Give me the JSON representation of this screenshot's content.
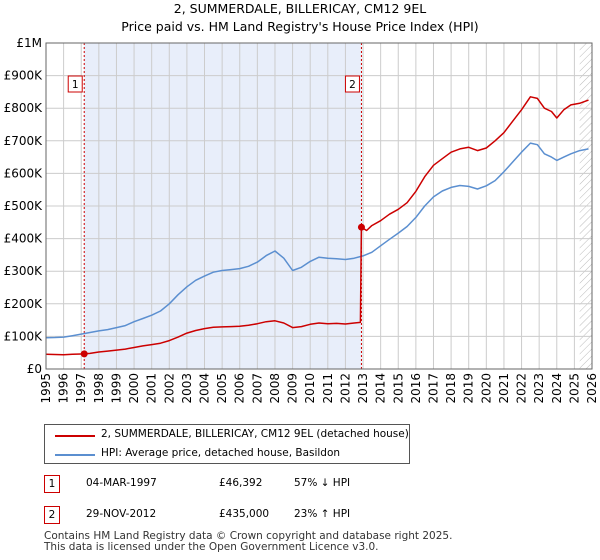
{
  "chart_data": {
    "type": "line",
    "title": "2, SUMMERDALE, BILLERICAY, CM12 9EL",
    "subtitle": "Price paid vs. HM Land Registry's House Price Index (HPI)",
    "xlim": [
      1995.0,
      2026.0
    ],
    "ylim": [
      0,
      1000000
    ],
    "x_ticks": [
      "1995",
      "1996",
      "1997",
      "1998",
      "1999",
      "2000",
      "2001",
      "2002",
      "2003",
      "2004",
      "2005",
      "2006",
      "2007",
      "2008",
      "2009",
      "2010",
      "2011",
      "2012",
      "2013",
      "2014",
      "2015",
      "2016",
      "2017",
      "2018",
      "2019",
      "2020",
      "2021",
      "2022",
      "2023",
      "2024",
      "2025",
      "2026"
    ],
    "y_ticks": [
      {
        "value": 0,
        "label": "£0"
      },
      {
        "value": 100000,
        "label": "£100K"
      },
      {
        "value": 200000,
        "label": "£200K"
      },
      {
        "value": 300000,
        "label": "£300K"
      },
      {
        "value": 400000,
        "label": "£400K"
      },
      {
        "value": 500000,
        "label": "£500K"
      },
      {
        "value": 600000,
        "label": "£600K"
      },
      {
        "value": 700000,
        "label": "£700K"
      },
      {
        "value": 800000,
        "label": "£800K"
      },
      {
        "value": 900000,
        "label": "£900K"
      },
      {
        "value": 1000000,
        "label": "£1M"
      }
    ],
    "shaded_span": [
      1997.17,
      2012.91
    ],
    "future_hatch_from": 2025.3,
    "annotations": [
      {
        "label": "1",
        "x": 1997.17
      },
      {
        "label": "2",
        "x": 2012.91
      }
    ],
    "sales": [
      {
        "label": "1",
        "x": 1997.17,
        "y": 46392
      },
      {
        "label": "2",
        "x": 2012.91,
        "y": 435000
      }
    ],
    "series": [
      {
        "name": "2, SUMMERDALE, BILLERICAY, CM12 9EL (detached house)",
        "color": "#cc0000",
        "points": [
          [
            1995.0,
            45000
          ],
          [
            1995.5,
            44500
          ],
          [
            1996.0,
            44000
          ],
          [
            1996.5,
            45000
          ],
          [
            1997.0,
            46000
          ],
          [
            1997.17,
            46392
          ],
          [
            1997.5,
            48000
          ],
          [
            1998.0,
            52000
          ],
          [
            1998.5,
            55000
          ],
          [
            1999.0,
            58000
          ],
          [
            1999.5,
            61000
          ],
          [
            2000.0,
            66000
          ],
          [
            2000.5,
            71000
          ],
          [
            2001.0,
            75000
          ],
          [
            2001.5,
            79000
          ],
          [
            2002.0,
            87000
          ],
          [
            2002.5,
            98000
          ],
          [
            2003.0,
            110000
          ],
          [
            2003.5,
            118000
          ],
          [
            2004.0,
            124000
          ],
          [
            2004.5,
            128000
          ],
          [
            2005.0,
            129000
          ],
          [
            2005.5,
            130000
          ],
          [
            2006.0,
            131000
          ],
          [
            2006.5,
            134000
          ],
          [
            2007.0,
            139000
          ],
          [
            2007.5,
            145000
          ],
          [
            2008.0,
            148000
          ],
          [
            2008.5,
            141000
          ],
          [
            2009.0,
            127000
          ],
          [
            2009.5,
            130000
          ],
          [
            2010.0,
            137000
          ],
          [
            2010.5,
            141000
          ],
          [
            2011.0,
            139000
          ],
          [
            2011.5,
            140000
          ],
          [
            2012.0,
            138000
          ],
          [
            2012.5,
            141000
          ],
          [
            2012.85,
            143000
          ],
          [
            2012.91,
            435000
          ],
          [
            2013.2,
            425000
          ],
          [
            2013.5,
            440000
          ],
          [
            2014.0,
            455000
          ],
          [
            2014.5,
            475000
          ],
          [
            2015.0,
            490000
          ],
          [
            2015.5,
            510000
          ],
          [
            2016.0,
            545000
          ],
          [
            2016.5,
            590000
          ],
          [
            2017.0,
            625000
          ],
          [
            2017.5,
            645000
          ],
          [
            2018.0,
            665000
          ],
          [
            2018.5,
            675000
          ],
          [
            2019.0,
            680000
          ],
          [
            2019.5,
            670000
          ],
          [
            2020.0,
            678000
          ],
          [
            2020.5,
            700000
          ],
          [
            2021.0,
            725000
          ],
          [
            2021.5,
            760000
          ],
          [
            2022.0,
            795000
          ],
          [
            2022.5,
            835000
          ],
          [
            2022.9,
            830000
          ],
          [
            2023.3,
            800000
          ],
          [
            2023.7,
            790000
          ],
          [
            2024.0,
            770000
          ],
          [
            2024.4,
            795000
          ],
          [
            2024.8,
            810000
          ],
          [
            2025.3,
            815000
          ],
          [
            2025.8,
            825000
          ]
        ]
      },
      {
        "name": "HPI: Average price, detached house, Basildon",
        "color": "#5b8fd0",
        "points": [
          [
            1995.0,
            96000
          ],
          [
            1995.5,
            96500
          ],
          [
            1996.0,
            98000
          ],
          [
            1996.5,
            102000
          ],
          [
            1997.0,
            107000
          ],
          [
            1997.5,
            112000
          ],
          [
            1998.0,
            117000
          ],
          [
            1998.5,
            121000
          ],
          [
            1999.0,
            127000
          ],
          [
            1999.5,
            133000
          ],
          [
            2000.0,
            145000
          ],
          [
            2000.5,
            155000
          ],
          [
            2001.0,
            165000
          ],
          [
            2001.5,
            178000
          ],
          [
            2002.0,
            200000
          ],
          [
            2002.5,
            228000
          ],
          [
            2003.0,
            252000
          ],
          [
            2003.5,
            272000
          ],
          [
            2004.0,
            285000
          ],
          [
            2004.5,
            297000
          ],
          [
            2005.0,
            302000
          ],
          [
            2005.5,
            305000
          ],
          [
            2006.0,
            308000
          ],
          [
            2006.5,
            315000
          ],
          [
            2007.0,
            328000
          ],
          [
            2007.5,
            348000
          ],
          [
            2008.0,
            362000
          ],
          [
            2008.5,
            340000
          ],
          [
            2009.0,
            302000
          ],
          [
            2009.5,
            312000
          ],
          [
            2010.0,
            330000
          ],
          [
            2010.5,
            343000
          ],
          [
            2011.0,
            340000
          ],
          [
            2011.5,
            338000
          ],
          [
            2012.0,
            336000
          ],
          [
            2012.5,
            340000
          ],
          [
            2013.0,
            347000
          ],
          [
            2013.5,
            358000
          ],
          [
            2014.0,
            378000
          ],
          [
            2014.5,
            398000
          ],
          [
            2015.0,
            417000
          ],
          [
            2015.5,
            437000
          ],
          [
            2016.0,
            465000
          ],
          [
            2016.5,
            500000
          ],
          [
            2017.0,
            528000
          ],
          [
            2017.5,
            546000
          ],
          [
            2018.0,
            557000
          ],
          [
            2018.5,
            563000
          ],
          [
            2019.0,
            560000
          ],
          [
            2019.5,
            552000
          ],
          [
            2020.0,
            562000
          ],
          [
            2020.5,
            578000
          ],
          [
            2021.0,
            605000
          ],
          [
            2021.5,
            635000
          ],
          [
            2022.0,
            665000
          ],
          [
            2022.5,
            693000
          ],
          [
            2022.9,
            688000
          ],
          [
            2023.3,
            660000
          ],
          [
            2023.7,
            650000
          ],
          [
            2024.0,
            640000
          ],
          [
            2024.4,
            650000
          ],
          [
            2024.8,
            660000
          ],
          [
            2025.3,
            670000
          ],
          [
            2025.8,
            675000
          ]
        ]
      }
    ]
  },
  "legend": {
    "property_label": "2, SUMMERDALE, BILLERICAY, CM12 9EL (detached house)",
    "hpi_label": "HPI: Average price, detached house, Basildon"
  },
  "transactions": [
    {
      "num": "1",
      "date": "04-MAR-1997",
      "price": "£46,392",
      "hpi": "57% ↓ HPI"
    },
    {
      "num": "2",
      "date": "29-NOV-2012",
      "price": "£435,000",
      "hpi": "23% ↑ HPI"
    }
  ],
  "footer": {
    "line1": "Contains HM Land Registry data © Crown copyright and database right 2025.",
    "line2": "This data is licensed under the Open Government Licence v3.0."
  },
  "colors": {
    "property": "#cc0000",
    "hpi": "#5b8fd0",
    "shade": "#e8eefa",
    "grid": "#cccccc"
  }
}
